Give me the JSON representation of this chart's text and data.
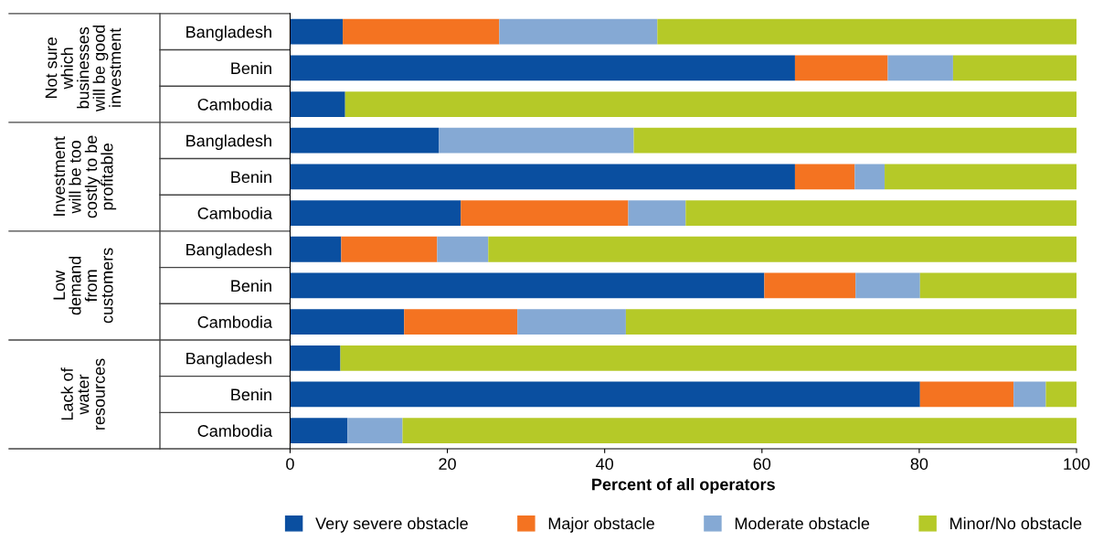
{
  "chart_data": {
    "type": "bar",
    "orientation": "horizontal",
    "stacked": true,
    "xlabel": "Percent of all operators",
    "categories": [
      "Bangladesh",
      "Benin",
      "Cambodia",
      "Bangladesh",
      "Benin",
      "Cambodia",
      "Bangladesh",
      "Benin",
      "Cambodia",
      "Bangladesh",
      "Benin",
      "Cambodia"
    ],
    "series": [
      {
        "name": "Very severe obstacle",
        "color": "#0a4fa0",
        "values": [
          6.7,
          64.2,
          7.0,
          18.9,
          64.2,
          21.7,
          6.5,
          60.3,
          14.5,
          6.4,
          80.1,
          7.3
        ]
      },
      {
        "name": "Major obstacle",
        "color": "#f47321",
        "values": [
          19.9,
          11.8,
          0,
          0,
          7.6,
          21.3,
          12.2,
          11.6,
          14.4,
          0,
          11.9,
          0
        ]
      },
      {
        "name": "Moderate obstacle",
        "color": "#85a9d4",
        "values": [
          20.1,
          8.3,
          0,
          24.8,
          3.8,
          7.3,
          6.5,
          8.2,
          13.8,
          0,
          4.1,
          7.0
        ]
      },
      {
        "name": "Minor/No obstacle",
        "color": "#b5c928",
        "values": [
          53.3,
          15.7,
          93.0,
          56.3,
          24.4,
          49.7,
          74.8,
          19.9,
          57.3,
          93.6,
          3.9,
          85.7
        ]
      }
    ],
    "annotations": [
      "Not sure\nwhich\nbusinesses\nwill be good\ninvestment",
      "Investment\nwill be too\ncostly to be\nprofitable",
      "Low\ndemand\nfrom\ncustomers",
      "Lack of\nwater\nresources"
    ],
    "xlim": [
      0,
      100
    ],
    "xticks": [
      0,
      20,
      40,
      60,
      80,
      100
    ],
    "legend": "bottom",
    "grid": false
  }
}
